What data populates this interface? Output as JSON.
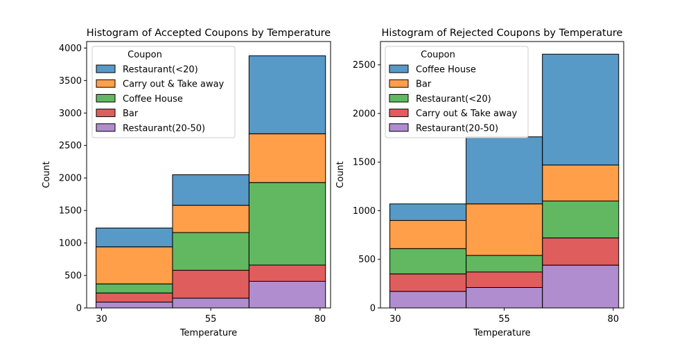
{
  "chart_data": [
    {
      "type": "bar",
      "stacked": true,
      "title": "Histogram of Accepted Coupons by Temperature",
      "xlabel": "Temperature",
      "ylabel": "Count",
      "categories": [
        "30",
        "55",
        "80"
      ],
      "xticks": [
        "30",
        "55",
        "80"
      ],
      "yticks": [
        "0",
        "500",
        "1000",
        "1500",
        "2000",
        "2500",
        "3000",
        "3500",
        "4000"
      ],
      "ylim": [
        0,
        4100
      ],
      "grid": false,
      "legend": {
        "title": "Coupon",
        "placement": "upper-left"
      },
      "series": [
        {
          "name": "Restaurant(<20)",
          "color": "#1f77b4",
          "values": [
            290,
            470,
            1200
          ]
        },
        {
          "name": "Carry out & Take away",
          "color": "#ff7f0e",
          "values": [
            570,
            420,
            750
          ]
        },
        {
          "name": "Coffee House",
          "color": "#2ca02c",
          "values": [
            140,
            580,
            1270
          ]
        },
        {
          "name": "Bar",
          "color": "#d62728",
          "values": [
            140,
            430,
            250
          ]
        },
        {
          "name": "Restaurant(20-50)",
          "color": "#9467bd",
          "values": [
            90,
            150,
            410
          ]
        }
      ]
    },
    {
      "type": "bar",
      "stacked": true,
      "title": "Histogram of Rejected Coupons by Temperature",
      "xlabel": "Temperature",
      "ylabel": "Count",
      "categories": [
        "30",
        "55",
        "80"
      ],
      "xticks": [
        "30",
        "55",
        "80"
      ],
      "yticks": [
        "0",
        "500",
        "1000",
        "1500",
        "2000",
        "2500"
      ],
      "ylim": [
        0,
        2740
      ],
      "grid": false,
      "legend": {
        "title": "Coupon",
        "placement": "upper-left"
      },
      "series": [
        {
          "name": "Coffee House",
          "color": "#1f77b4",
          "values": [
            170,
            690,
            1140
          ]
        },
        {
          "name": "Bar",
          "color": "#ff7f0e",
          "values": [
            290,
            530,
            370
          ]
        },
        {
          "name": "Restaurant(<20)",
          "color": "#2ca02c",
          "values": [
            260,
            170,
            380
          ]
        },
        {
          "name": "Carry out & Take away",
          "color": "#d62728",
          "values": [
            180,
            160,
            280
          ]
        },
        {
          "name": "Restaurant(20-50)",
          "color": "#9467bd",
          "values": [
            170,
            210,
            440
          ]
        }
      ]
    }
  ]
}
